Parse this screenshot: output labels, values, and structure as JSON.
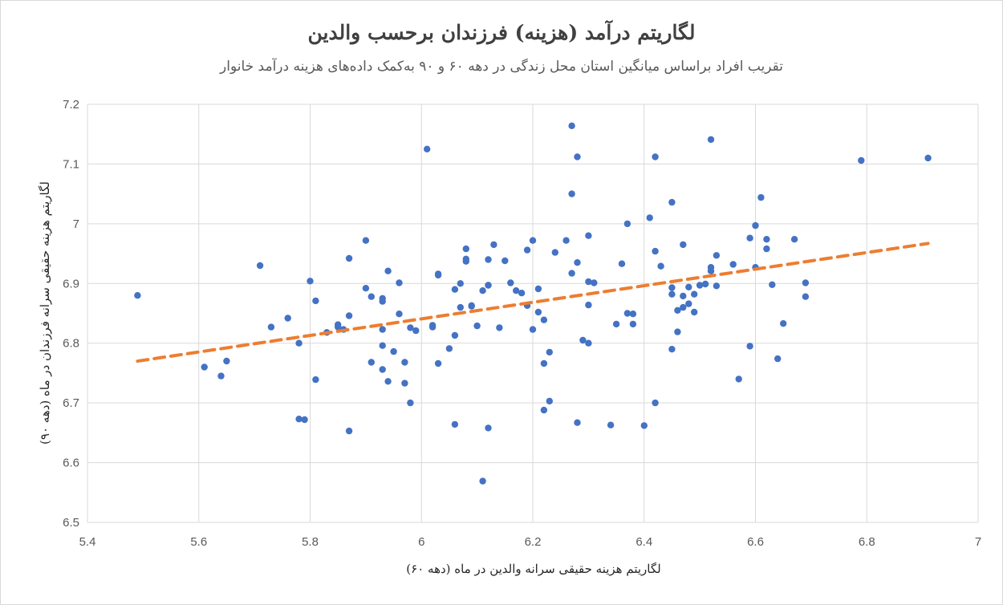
{
  "chart_data": {
    "type": "scatter",
    "title": "لگاریتم درآمد (هزینه) فرزندان برحسب والدین",
    "subtitle": "تقریب افراد براساس میانگین استان محل زندگی در دهه ۶۰ و ۹۰ به‌کمک داده‌های هزینه درآمد خانوار",
    "xlabel": "لگاریتم هزینه حقیقی سرانه والدین در ماه (دهه ۶۰)",
    "ylabel": "لگاریتم هزینه حقیقی سرانه فرزندان در ماه (دهه ۹۰)",
    "xlim": [
      5.4,
      7
    ],
    "ylim": [
      6.5,
      7.2
    ],
    "x_ticks": [
      "5.4",
      "5.6",
      "5.8",
      "6",
      "6.2",
      "6.4",
      "6.6",
      "6.8",
      "7"
    ],
    "y_ticks": [
      "6.5",
      "6.6",
      "6.7",
      "6.8",
      "6.9",
      "7",
      "7.1",
      "7.2"
    ],
    "grid": "vertical and horizontal",
    "point_color": "#4472c4",
    "trend_color": "#ed7d31",
    "trendline": {
      "style": "dashed",
      "x": [
        5.49,
        6.91
      ],
      "y": [
        6.77,
        6.967
      ]
    },
    "points": [
      [
        5.49,
        6.88
      ],
      [
        5.61,
        6.76
      ],
      [
        5.64,
        6.745
      ],
      [
        5.65,
        6.77
      ],
      [
        5.71,
        6.93
      ],
      [
        5.73,
        6.827
      ],
      [
        5.76,
        6.842
      ],
      [
        5.78,
        6.673
      ],
      [
        5.78,
        6.8
      ],
      [
        5.79,
        6.672
      ],
      [
        5.8,
        6.904
      ],
      [
        5.81,
        6.871
      ],
      [
        5.81,
        6.739
      ],
      [
        5.83,
        6.818
      ],
      [
        5.85,
        6.827
      ],
      [
        5.85,
        6.831
      ],
      [
        5.86,
        6.823
      ],
      [
        5.87,
        6.653
      ],
      [
        5.87,
        6.846
      ],
      [
        5.87,
        6.942
      ],
      [
        5.9,
        6.972
      ],
      [
        5.9,
        6.892
      ],
      [
        5.91,
        6.768
      ],
      [
        5.91,
        6.878
      ],
      [
        5.93,
        6.756
      ],
      [
        5.93,
        6.87
      ],
      [
        5.93,
        6.875
      ],
      [
        5.93,
        6.823
      ],
      [
        5.93,
        6.796
      ],
      [
        5.94,
        6.921
      ],
      [
        5.94,
        6.736
      ],
      [
        5.95,
        6.786
      ],
      [
        5.96,
        6.901
      ],
      [
        5.96,
        6.849
      ],
      [
        5.97,
        6.768
      ],
      [
        5.97,
        6.733
      ],
      [
        5.98,
        6.826
      ],
      [
        5.98,
        6.7
      ],
      [
        5.99,
        6.821
      ],
      [
        6.01,
        7.125
      ],
      [
        6.02,
        6.83
      ],
      [
        6.02,
        6.827
      ],
      [
        6.03,
        6.914
      ],
      [
        6.03,
        6.916
      ],
      [
        6.03,
        6.766
      ],
      [
        6.05,
        6.791
      ],
      [
        6.06,
        6.664
      ],
      [
        6.06,
        6.813
      ],
      [
        6.06,
        6.89
      ],
      [
        6.07,
        6.9
      ],
      [
        6.07,
        6.86
      ],
      [
        6.08,
        6.958
      ],
      [
        6.08,
        6.937
      ],
      [
        6.08,
        6.941
      ],
      [
        6.09,
        6.863
      ],
      [
        6.09,
        6.862
      ],
      [
        6.1,
        6.829
      ],
      [
        6.11,
        6.569
      ],
      [
        6.11,
        6.888
      ],
      [
        6.12,
        6.897
      ],
      [
        6.12,
        6.897
      ],
      [
        6.12,
        6.94
      ],
      [
        6.12,
        6.658
      ],
      [
        6.13,
        6.965
      ],
      [
        6.14,
        6.826
      ],
      [
        6.15,
        6.938
      ],
      [
        6.16,
        6.901
      ],
      [
        6.17,
        6.888
      ],
      [
        6.18,
        6.884
      ],
      [
        6.19,
        6.956
      ],
      [
        6.19,
        6.863
      ],
      [
        6.2,
        6.823
      ],
      [
        6.2,
        6.972
      ],
      [
        6.21,
        6.852
      ],
      [
        6.21,
        6.891
      ],
      [
        6.22,
        6.839
      ],
      [
        6.22,
        6.766
      ],
      [
        6.22,
        6.688
      ],
      [
        6.23,
        6.703
      ],
      [
        6.23,
        6.785
      ],
      [
        6.24,
        6.952
      ],
      [
        6.26,
        6.972
      ],
      [
        6.27,
        7.05
      ],
      [
        6.27,
        6.917
      ],
      [
        6.27,
        7.164
      ],
      [
        6.28,
        7.112
      ],
      [
        6.28,
        6.935
      ],
      [
        6.28,
        6.667
      ],
      [
        6.29,
        6.805
      ],
      [
        6.3,
        6.98
      ],
      [
        6.3,
        6.864
      ],
      [
        6.3,
        6.903
      ],
      [
        6.3,
        6.8
      ],
      [
        6.31,
        6.901
      ],
      [
        6.34,
        6.663
      ],
      [
        6.35,
        6.832
      ],
      [
        6.36,
        6.933
      ],
      [
        6.37,
        6.85
      ],
      [
        6.37,
        7.0
      ],
      [
        6.38,
        6.849
      ],
      [
        6.38,
        6.832
      ],
      [
        6.4,
        6.662
      ],
      [
        6.41,
        7.01
      ],
      [
        6.42,
        7.112
      ],
      [
        6.42,
        6.954
      ],
      [
        6.42,
        6.7
      ],
      [
        6.43,
        6.929
      ],
      [
        6.45,
        6.79
      ],
      [
        6.45,
        6.882
      ],
      [
        6.45,
        6.893
      ],
      [
        6.45,
        7.036
      ],
      [
        6.46,
        6.819
      ],
      [
        6.46,
        6.855
      ],
      [
        6.47,
        6.86
      ],
      [
        6.47,
        6.879
      ],
      [
        6.47,
        6.965
      ],
      [
        6.48,
        6.894
      ],
      [
        6.48,
        6.866
      ],
      [
        6.49,
        6.882
      ],
      [
        6.49,
        6.852
      ],
      [
        6.5,
        6.897
      ],
      [
        6.51,
        6.899
      ],
      [
        6.52,
        7.141
      ],
      [
        6.52,
        6.927
      ],
      [
        6.52,
        6.921
      ],
      [
        6.53,
        6.896
      ],
      [
        6.53,
        6.947
      ],
      [
        6.56,
        6.932
      ],
      [
        6.57,
        6.74
      ],
      [
        6.59,
        6.795
      ],
      [
        6.59,
        6.976
      ],
      [
        6.6,
        6.997
      ],
      [
        6.6,
        6.927
      ],
      [
        6.61,
        7.044
      ],
      [
        6.62,
        6.958
      ],
      [
        6.62,
        6.974
      ],
      [
        6.63,
        6.898
      ],
      [
        6.64,
        6.774
      ],
      [
        6.65,
        6.833
      ],
      [
        6.67,
        6.974
      ],
      [
        6.69,
        6.901
      ],
      [
        6.69,
        6.878
      ],
      [
        6.79,
        7.106
      ],
      [
        6.91,
        7.11
      ]
    ]
  }
}
